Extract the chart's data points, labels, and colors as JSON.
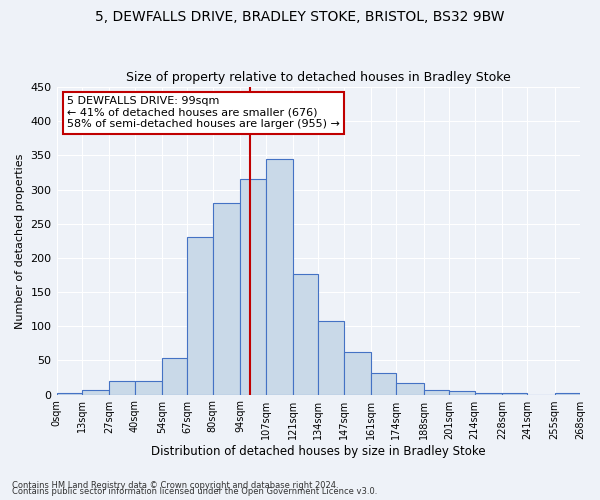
{
  "title1": "5, DEWFALLS DRIVE, BRADLEY STOKE, BRISTOL, BS32 9BW",
  "title2": "Size of property relative to detached houses in Bradley Stoke",
  "xlabel": "Distribution of detached houses by size in Bradley Stoke",
  "ylabel": "Number of detached properties",
  "bin_labels": [
    "0sqm",
    "13sqm",
    "27sqm",
    "40sqm",
    "54sqm",
    "67sqm",
    "80sqm",
    "94sqm",
    "107sqm",
    "121sqm",
    "134sqm",
    "147sqm",
    "161sqm",
    "174sqm",
    "188sqm",
    "201sqm",
    "214sqm",
    "228sqm",
    "241sqm",
    "255sqm",
    "268sqm"
  ],
  "bin_edges": [
    0,
    13,
    27,
    40,
    54,
    67,
    80,
    94,
    107,
    121,
    134,
    147,
    161,
    174,
    188,
    201,
    214,
    228,
    241,
    255,
    268
  ],
  "bar_heights": [
    3,
    6,
    20,
    20,
    53,
    230,
    280,
    316,
    344,
    177,
    108,
    63,
    32,
    17,
    7,
    5,
    3,
    3,
    0,
    3
  ],
  "bar_facecolor": "#c9d9e8",
  "bar_edgecolor": "#4472c4",
  "property_size": 99,
  "vline_color": "#c00000",
  "annotation_line1": "5 DEWFALLS DRIVE: 99sqm",
  "annotation_line2": "← 41% of detached houses are smaller (676)",
  "annotation_line3": "58% of semi-detached houses are larger (955) →",
  "annotation_box_edgecolor": "#c00000",
  "annotation_box_facecolor": "#ffffff",
  "ylim": [
    0,
    450
  ],
  "yticks": [
    0,
    50,
    100,
    150,
    200,
    250,
    300,
    350,
    400,
    450
  ],
  "footer1": "Contains HM Land Registry data © Crown copyright and database right 2024.",
  "footer2": "Contains public sector information licensed under the Open Government Licence v3.0.",
  "bg_color": "#eef2f8",
  "plot_bg_color": "#eef2f8",
  "grid_color": "#ffffff",
  "title1_fontsize": 10,
  "title2_fontsize": 9
}
